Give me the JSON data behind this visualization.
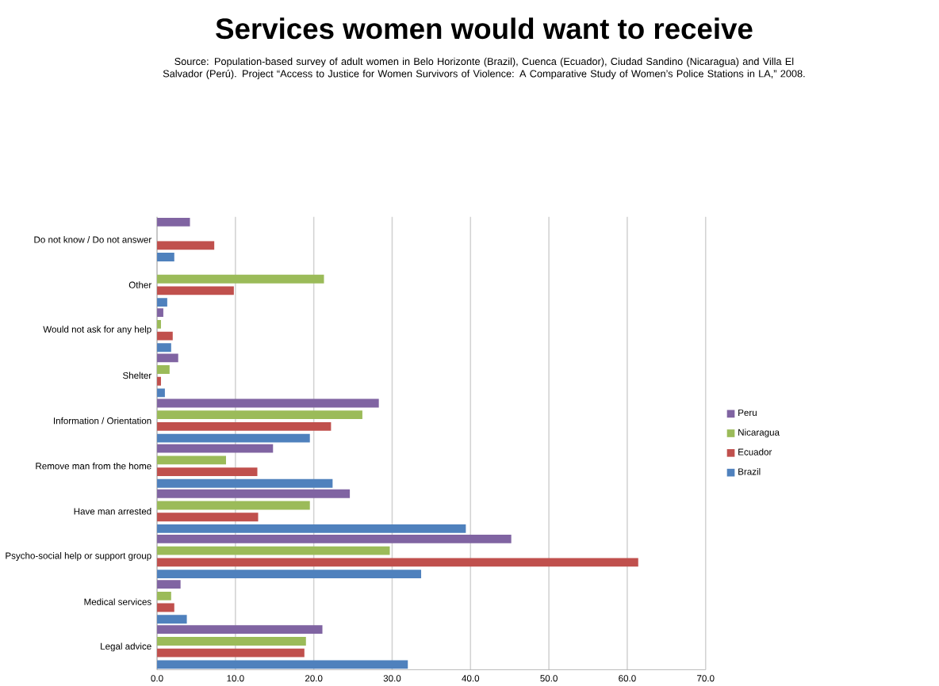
{
  "chart_data": {
    "type": "bar",
    "orientation": "horizontal",
    "title": "Services women would want to receive",
    "annotations": [
      "Source: Population-based survey of adult women in Belo Horizonte (Brazil), Cuenca (Ecuador), Ciudad Sandino (Nicaragua) and Villa El Salvador (Perú). Project “Access to Justice for Women Survivors of Violence: A Comparative Study of Women’s Police Stations in LA,” 2008."
    ],
    "categories": [
      "Do not know / Do not answer",
      "Other",
      "Would not ask for any help",
      "Shelter",
      "Information / Orientation",
      "Remove man from the home",
      "Have man arrested",
      "Psycho-social help or support group",
      "Medical services",
      "Legal advice"
    ],
    "series": [
      {
        "name": "Peru",
        "color": "#8064a2",
        "values": [
          4.2,
          null,
          0.8,
          2.7,
          28.3,
          14.8,
          24.6,
          45.2,
          3.0,
          21.1
        ]
      },
      {
        "name": "Nicaragua",
        "color": "#9bbb59",
        "values": [
          null,
          21.3,
          0.5,
          1.6,
          26.2,
          8.8,
          19.5,
          29.7,
          1.8,
          19.0
        ]
      },
      {
        "name": "Ecuador",
        "color": "#c0504d",
        "values": [
          7.3,
          9.8,
          2.0,
          0.5,
          22.2,
          12.8,
          12.9,
          61.4,
          2.2,
          18.8
        ]
      },
      {
        "name": "Brazil",
        "color": "#4f81bd",
        "values": [
          2.2,
          1.3,
          1.8,
          1.0,
          19.5,
          22.4,
          39.4,
          33.7,
          3.8,
          32.0
        ]
      }
    ],
    "xlim": [
      0,
      70
    ],
    "xticks": [
      {
        "value": 0,
        "label": "0.0"
      },
      {
        "value": 10,
        "label": "10.0"
      },
      {
        "value": 20,
        "label": "20.0"
      },
      {
        "value": 30,
        "label": "30.0"
      },
      {
        "value": 40,
        "label": "40.0"
      },
      {
        "value": 50,
        "label": "50.0"
      },
      {
        "value": 60,
        "label": "60.0"
      },
      {
        "value": 70,
        "label": "70.0"
      }
    ],
    "grid": "x",
    "legend": "right"
  }
}
